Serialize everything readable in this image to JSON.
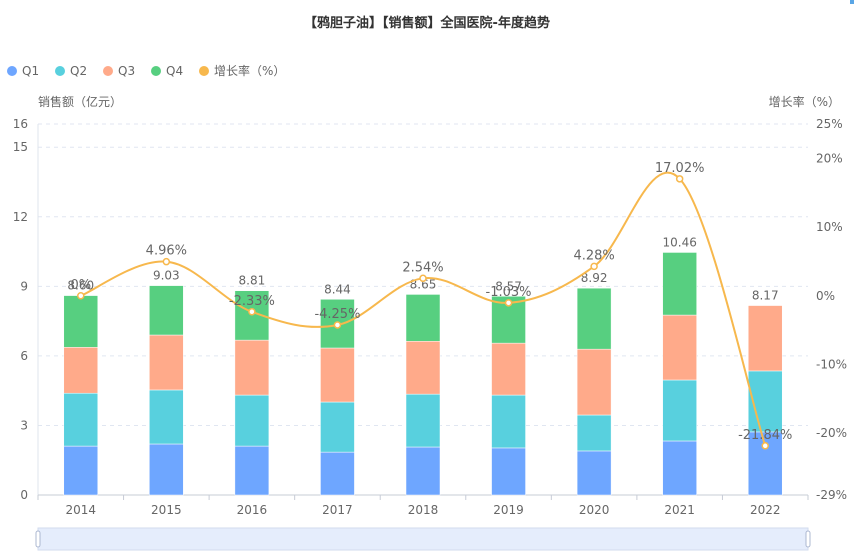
{
  "chart_data": {
    "type": "bar",
    "stacked": true,
    "title": "【鸦胆子油】【销售额】全国医院-年度趋势",
    "categories": [
      "2014",
      "2015",
      "2016",
      "2017",
      "2018",
      "2019",
      "2020",
      "2021",
      "2022"
    ],
    "series": [
      {
        "name": "Q1",
        "type": "bar",
        "color": "#6ea6ff",
        "values": [
          2.11,
          2.2,
          2.11,
          1.85,
          2.07,
          2.03,
          1.9,
          2.33,
          2.72
        ]
      },
      {
        "name": "Q2",
        "type": "bar",
        "color": "#58d0de",
        "values": [
          2.28,
          2.33,
          2.2,
          2.16,
          2.28,
          2.28,
          1.55,
          2.63,
          2.63
        ]
      },
      {
        "name": "Q3",
        "type": "bar",
        "color": "#ffaa8a",
        "values": [
          1.98,
          2.37,
          2.37,
          2.33,
          2.28,
          2.24,
          2.84,
          2.8,
          2.82
        ]
      },
      {
        "name": "Q4",
        "type": "bar",
        "color": "#57cf80",
        "values": [
          2.23,
          2.13,
          2.13,
          2.1,
          2.02,
          2.02,
          2.63,
          2.7,
          0
        ]
      },
      {
        "name": "增长率（%）",
        "type": "line",
        "color": "#f7b84d",
        "axis": "right",
        "values": [
          0,
          4.96,
          -2.33,
          -4.25,
          2.54,
          -1.03,
          4.28,
          17.02,
          -21.84
        ]
      }
    ],
    "totals": [
      8.6,
      9.03,
      8.81,
      8.44,
      8.65,
      8.57,
      8.92,
      10.46,
      8.17
    ],
    "total_labels": [
      "8.60",
      "9.03",
      "8.81",
      "8.44",
      "8.65",
      "8.57",
      "8.92",
      "10.46",
      "8.17"
    ],
    "rate_labels": [
      "0%",
      "4.96%",
      "-2.33%",
      "-4.25%",
      "2.54%",
      "-1.03%",
      "4.28%",
      "17.02%",
      "-21.84%"
    ],
    "ylabel": "销售额（亿元）",
    "y2label": "增长率（%）",
    "ylim": [
      0,
      16
    ],
    "yticks": [
      0,
      3,
      6,
      9,
      12,
      15,
      16
    ],
    "y2lim": [
      -29,
      25
    ],
    "y2ticks": [
      -29,
      -20,
      -10,
      0,
      10,
      20,
      25
    ],
    "y2tick_labels": [
      "-29%",
      "-20%",
      "-10%",
      "0%",
      "10%",
      "20%",
      "25%"
    ],
    "grid": true,
    "legend_position": "top-left",
    "legend": [
      "Q1",
      "Q2",
      "Q3",
      "Q4",
      "增长率（%）"
    ],
    "datazoom": {
      "start": 0,
      "end": 100
    }
  }
}
